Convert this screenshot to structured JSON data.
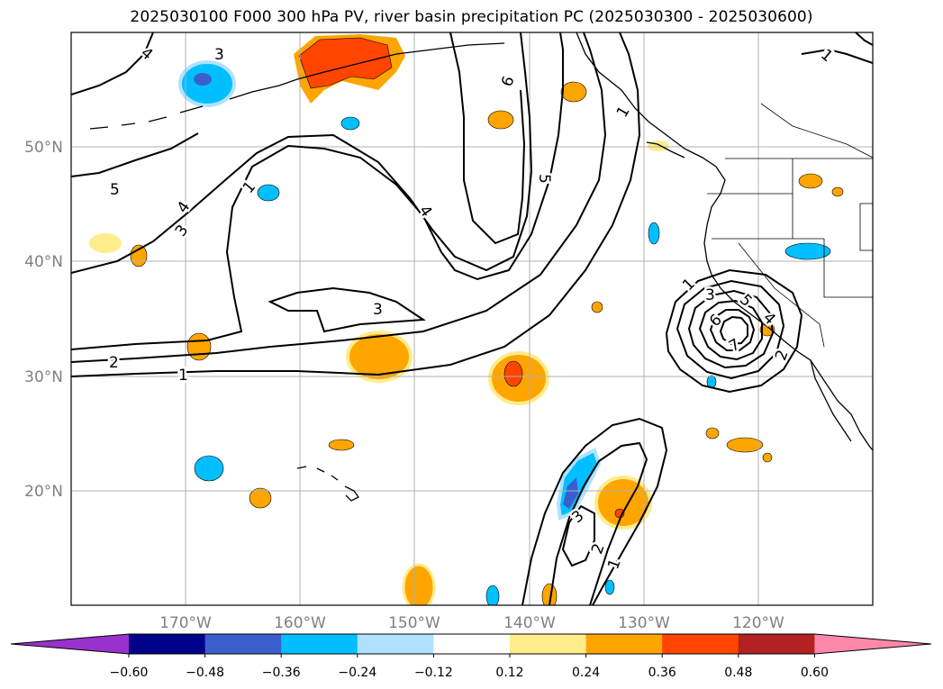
{
  "title": "2025030100 F000 300 hPa PV, river basin precipitation PC (2025030300 - 2025030600)",
  "map": {
    "lon_range": [
      -180,
      -110
    ],
    "lat_range": [
      10,
      60
    ],
    "lon_labels": [
      "170°W",
      "160°W",
      "150°W",
      "140°W",
      "130°W",
      "120°W"
    ],
    "lat_labels": [
      "50°N",
      "40°N",
      "30°N",
      "20°N"
    ],
    "label_color": "#808080",
    "grid_color": "#b0b0b0",
    "pv_contour_labels": [
      "1",
      "2",
      "3",
      "4",
      "5",
      "6",
      "7"
    ]
  },
  "colorbar": {
    "colors": [
      "#9932cc",
      "#00008b",
      "#3a5fcd",
      "#00bfff",
      "#b0e2ff",
      "#ffffff",
      "#ffec8b",
      "#ffa500",
      "#ff4500",
      "#b22222",
      "#ff88aa"
    ],
    "ticks": [
      "−0.60",
      "−0.48",
      "−0.36",
      "−0.24",
      "−0.12",
      "0.12",
      "0.24",
      "0.36",
      "0.48",
      "0.60"
    ]
  }
}
